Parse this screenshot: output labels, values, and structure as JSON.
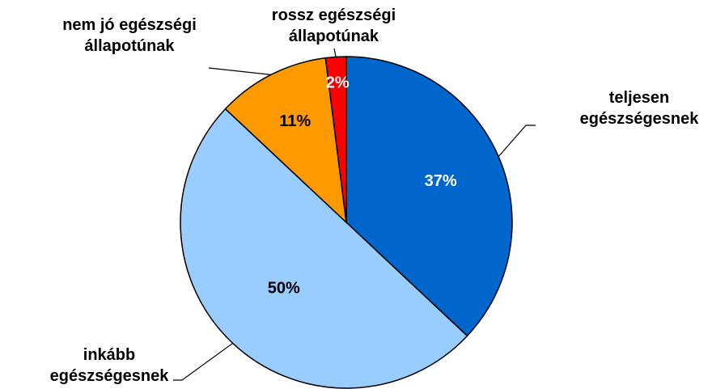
{
  "chart_data": {
    "type": "pie",
    "categories": [
      "teljesen egészségesnek",
      "inkább egészségesnek",
      "nem jó egészségi állapotúnak",
      "rossz egészségi állapotúnak"
    ],
    "values": [
      37,
      50,
      11,
      2
    ],
    "value_labels": [
      "37%",
      "50%",
      "11%",
      "2%"
    ],
    "colors": [
      "#0066cc",
      "#99ccff",
      "#ff9900",
      "#ff0000"
    ]
  }
}
